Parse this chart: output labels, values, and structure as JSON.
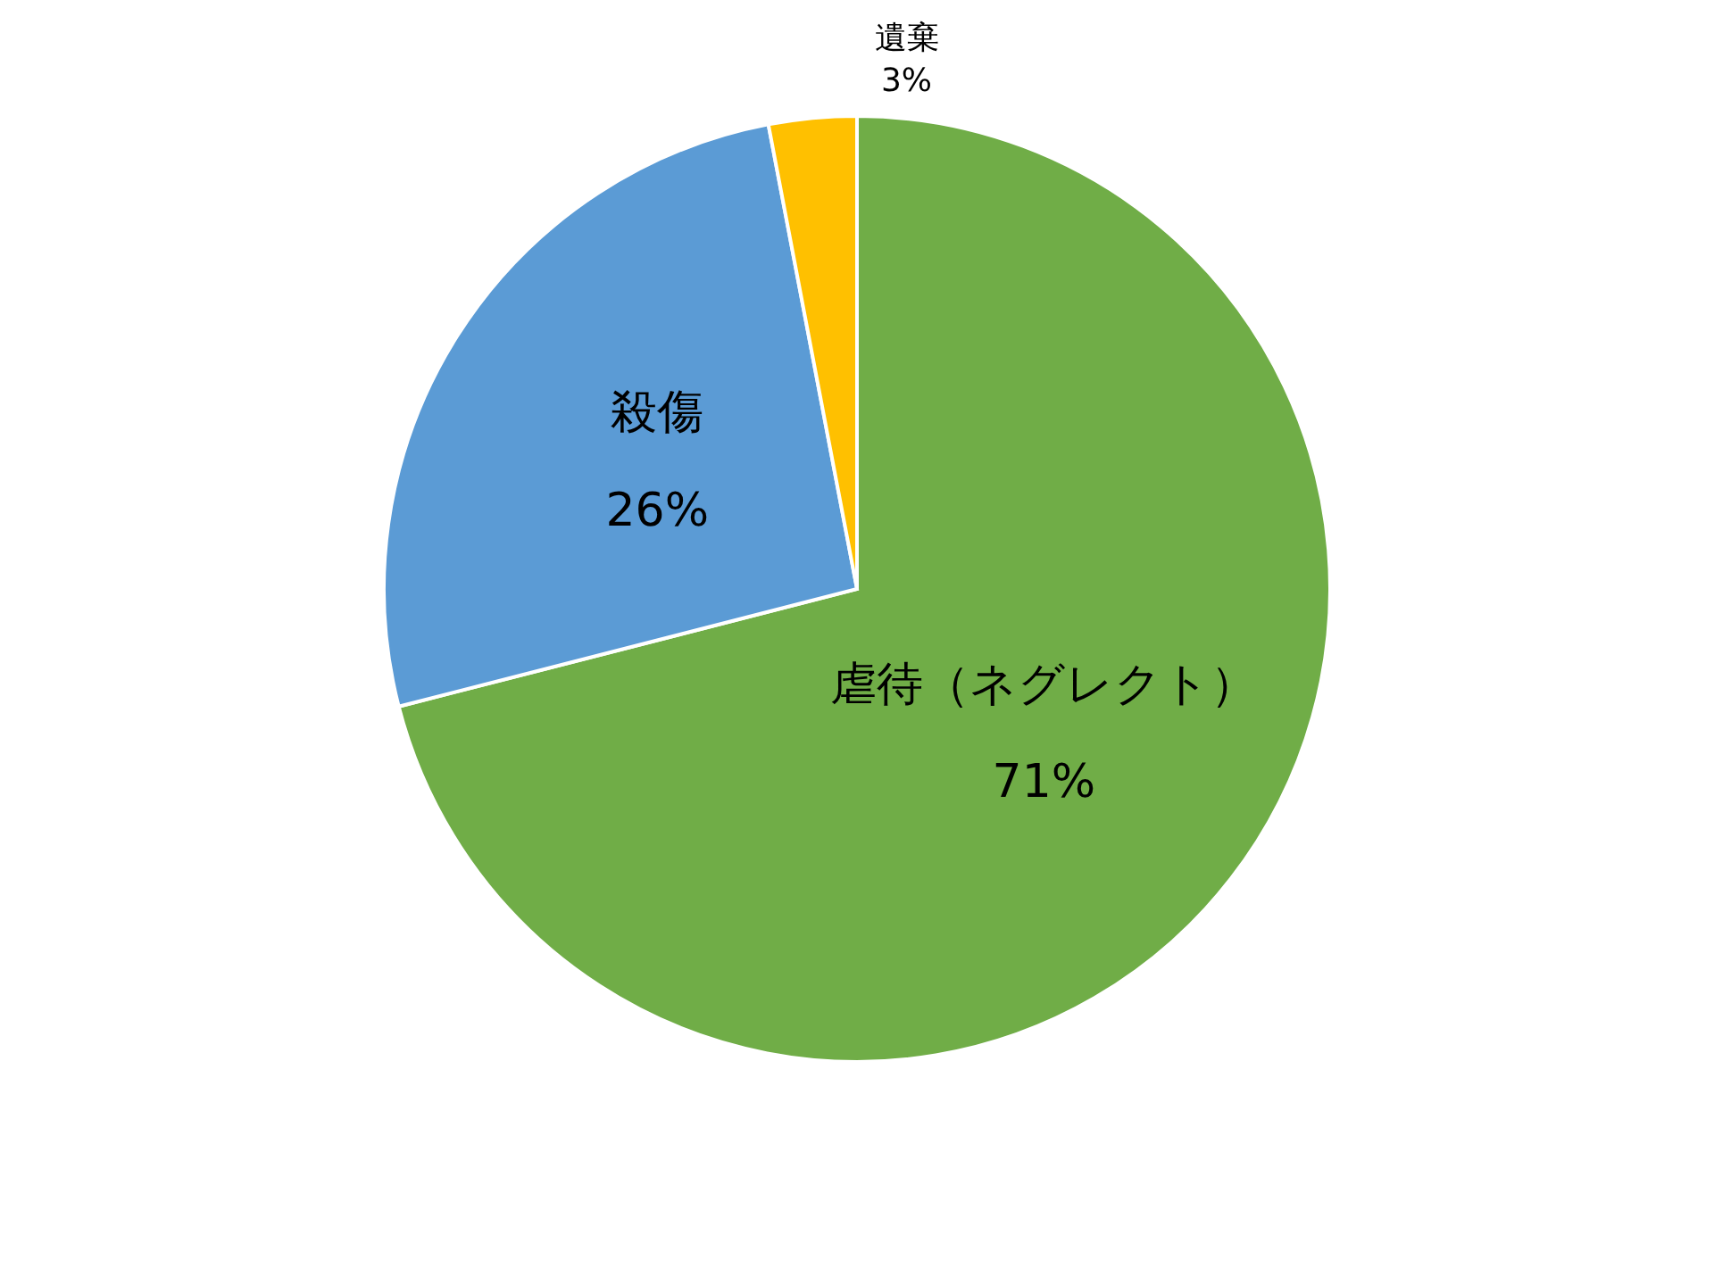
{
  "chart_data": {
    "type": "pie",
    "categories": [
      "虐待（ネグレクト）",
      "殺傷",
      "遺棄"
    ],
    "values": [
      71,
      26,
      3
    ],
    "colors": [
      "#70ad47",
      "#5b9bd5",
      "#ffc000"
    ],
    "value_labels": [
      "71%",
      "26%",
      "3%"
    ]
  }
}
